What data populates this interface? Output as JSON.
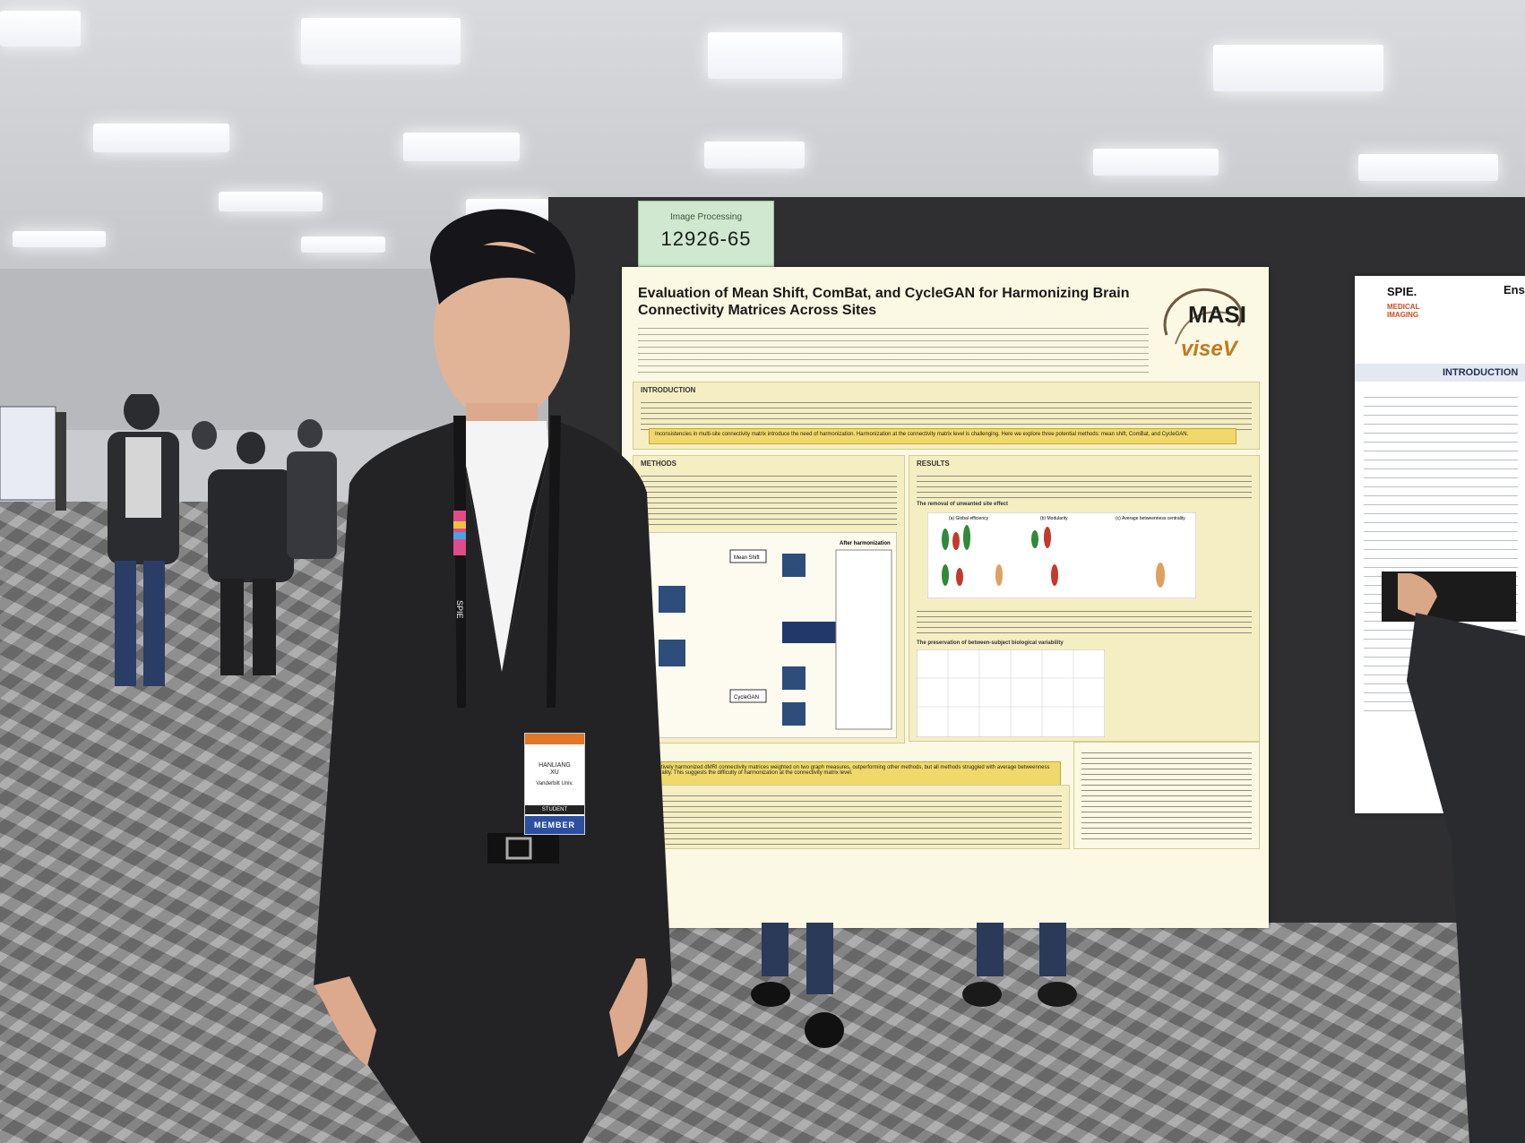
{
  "scene": {
    "description_colors": {
      "board": "#2f2f31",
      "poster_bg": "#fbf8e3",
      "section_bg": "#f5eec3",
      "highlight": "#f0d96a",
      "suit": "#232326"
    }
  },
  "sign": {
    "category": "Image Processing",
    "code": "12926-65"
  },
  "poster": {
    "title": "Evaluation of Mean Shift, ComBat, and CycleGAN for Harmonizing Brain Connectivity Matrices Across Sites",
    "logo_text_1": "MASI",
    "logo_text_2": "viseV",
    "sections": {
      "introduction": "INTRODUCTION",
      "methods": "METHODS",
      "results": "RESULTS"
    },
    "intro_banner": "Inconsistencies in multi-site connectivity matrix introduce the need of harmonization. Harmonization at the connectivity matrix level is challenging. Here we explore three potential methods: mean shift, ComBat, and CycleGAN.",
    "methods_labels": [
      "Mean Shift",
      "CycleGAN",
      "After harmonization"
    ],
    "results_subheads": [
      "The removal of unwanted site effect",
      "The preservation of between-subject biological variability"
    ],
    "figure2_panels": [
      "(a) Global efficiency",
      "(b) Modularity",
      "(c) Average betweenness centrality"
    ],
    "conclusion_banner": "effectively harmonized dMRI connectivity matrices weighted on two graph measures, outperforming other methods, but all methods struggled with average betweenness centrality. This suggests the difficulty of harmonization at the connectivity matrix level."
  },
  "right_poster": {
    "brand": "SPIE.",
    "brand_sub": "MEDICAL IMAGING",
    "header": "Ens",
    "section": "INTRODUCTION"
  },
  "badge": {
    "name_first": "HANLIANG",
    "name_last": "XU",
    "affiliation": "Vanderbilt Univ.",
    "type": "STUDENT",
    "member": "MEMBER",
    "lanyard_text": "SPIE"
  }
}
